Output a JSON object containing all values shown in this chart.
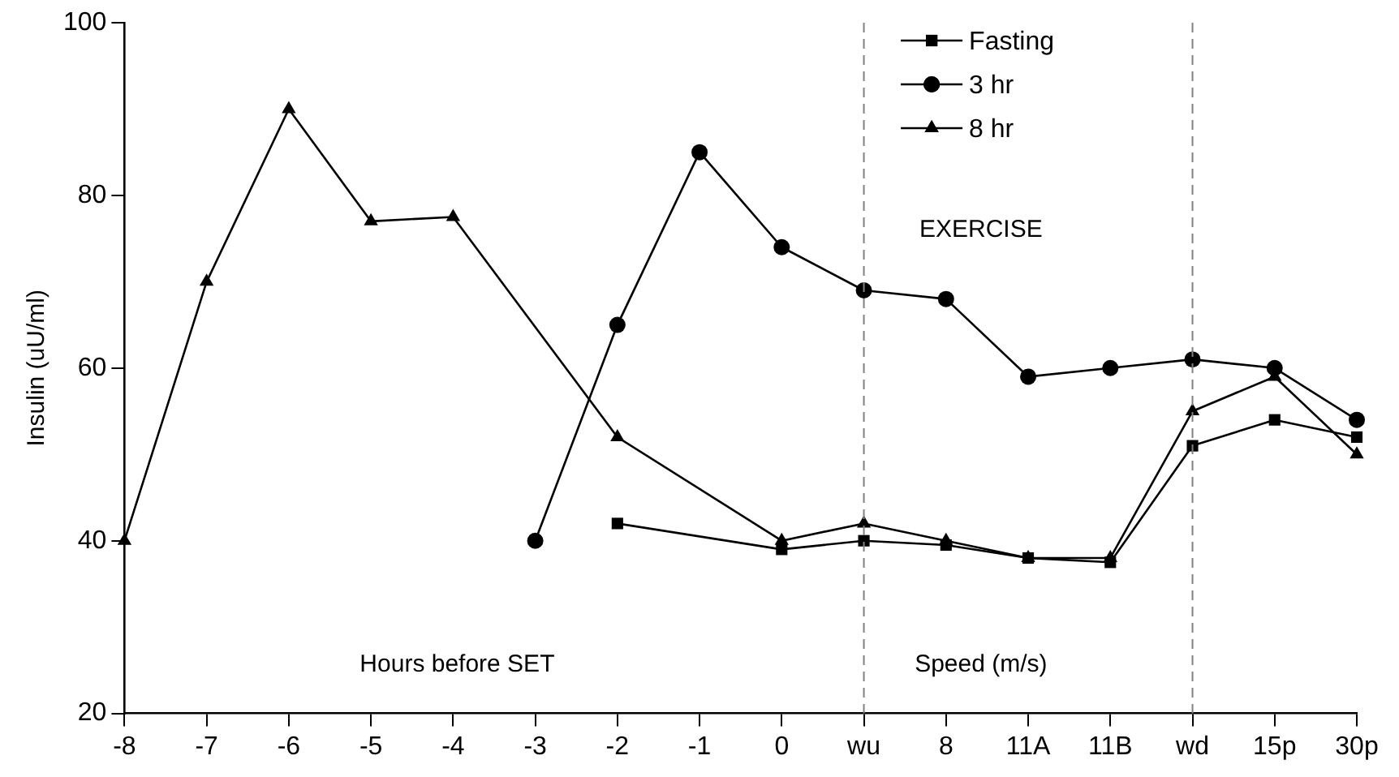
{
  "chart_data": {
    "type": "line",
    "ylabel": "Insulin (uU/ml)",
    "categories": [
      "-8",
      "-7",
      "-6",
      "-5",
      "-4",
      "-3",
      "-2",
      "-1",
      "0",
      "wu",
      "8",
      "11A",
      "11B",
      "wd",
      "15p",
      "30p"
    ],
    "series": [
      {
        "name": "Fasting",
        "color": "#000000",
        "marker": "square",
        "values": [
          null,
          null,
          null,
          null,
          null,
          null,
          42,
          null,
          39,
          40,
          39.5,
          38,
          37.5,
          51,
          54,
          52
        ]
      },
      {
        "name": "3 hr",
        "color": "#000000",
        "marker": "circle",
        "values": [
          null,
          null,
          null,
          null,
          null,
          40,
          65,
          85,
          74,
          69,
          68,
          59,
          60,
          61,
          60,
          54
        ]
      },
      {
        "name": "8 hr",
        "color": "#000000",
        "marker": "triangle",
        "values": [
          40,
          70,
          90,
          77,
          77.5,
          null,
          52,
          null,
          40,
          42,
          40,
          38,
          38,
          55,
          59,
          50
        ]
      }
    ],
    "ylim": [
      20,
      100
    ],
    "yticks": [
      20,
      40,
      60,
      80,
      100
    ],
    "grid": false,
    "legend": "top right",
    "ref_lines": [
      {
        "axis": "x",
        "value": "wu",
        "line_style": "dashed",
        "color": "#808080"
      },
      {
        "axis": "x",
        "value": "wd",
        "line_style": "dashed",
        "color": "#808080"
      }
    ],
    "annotations": [
      "Hours before SET",
      "Speed (m/s)",
      "EXERCISE"
    ]
  }
}
